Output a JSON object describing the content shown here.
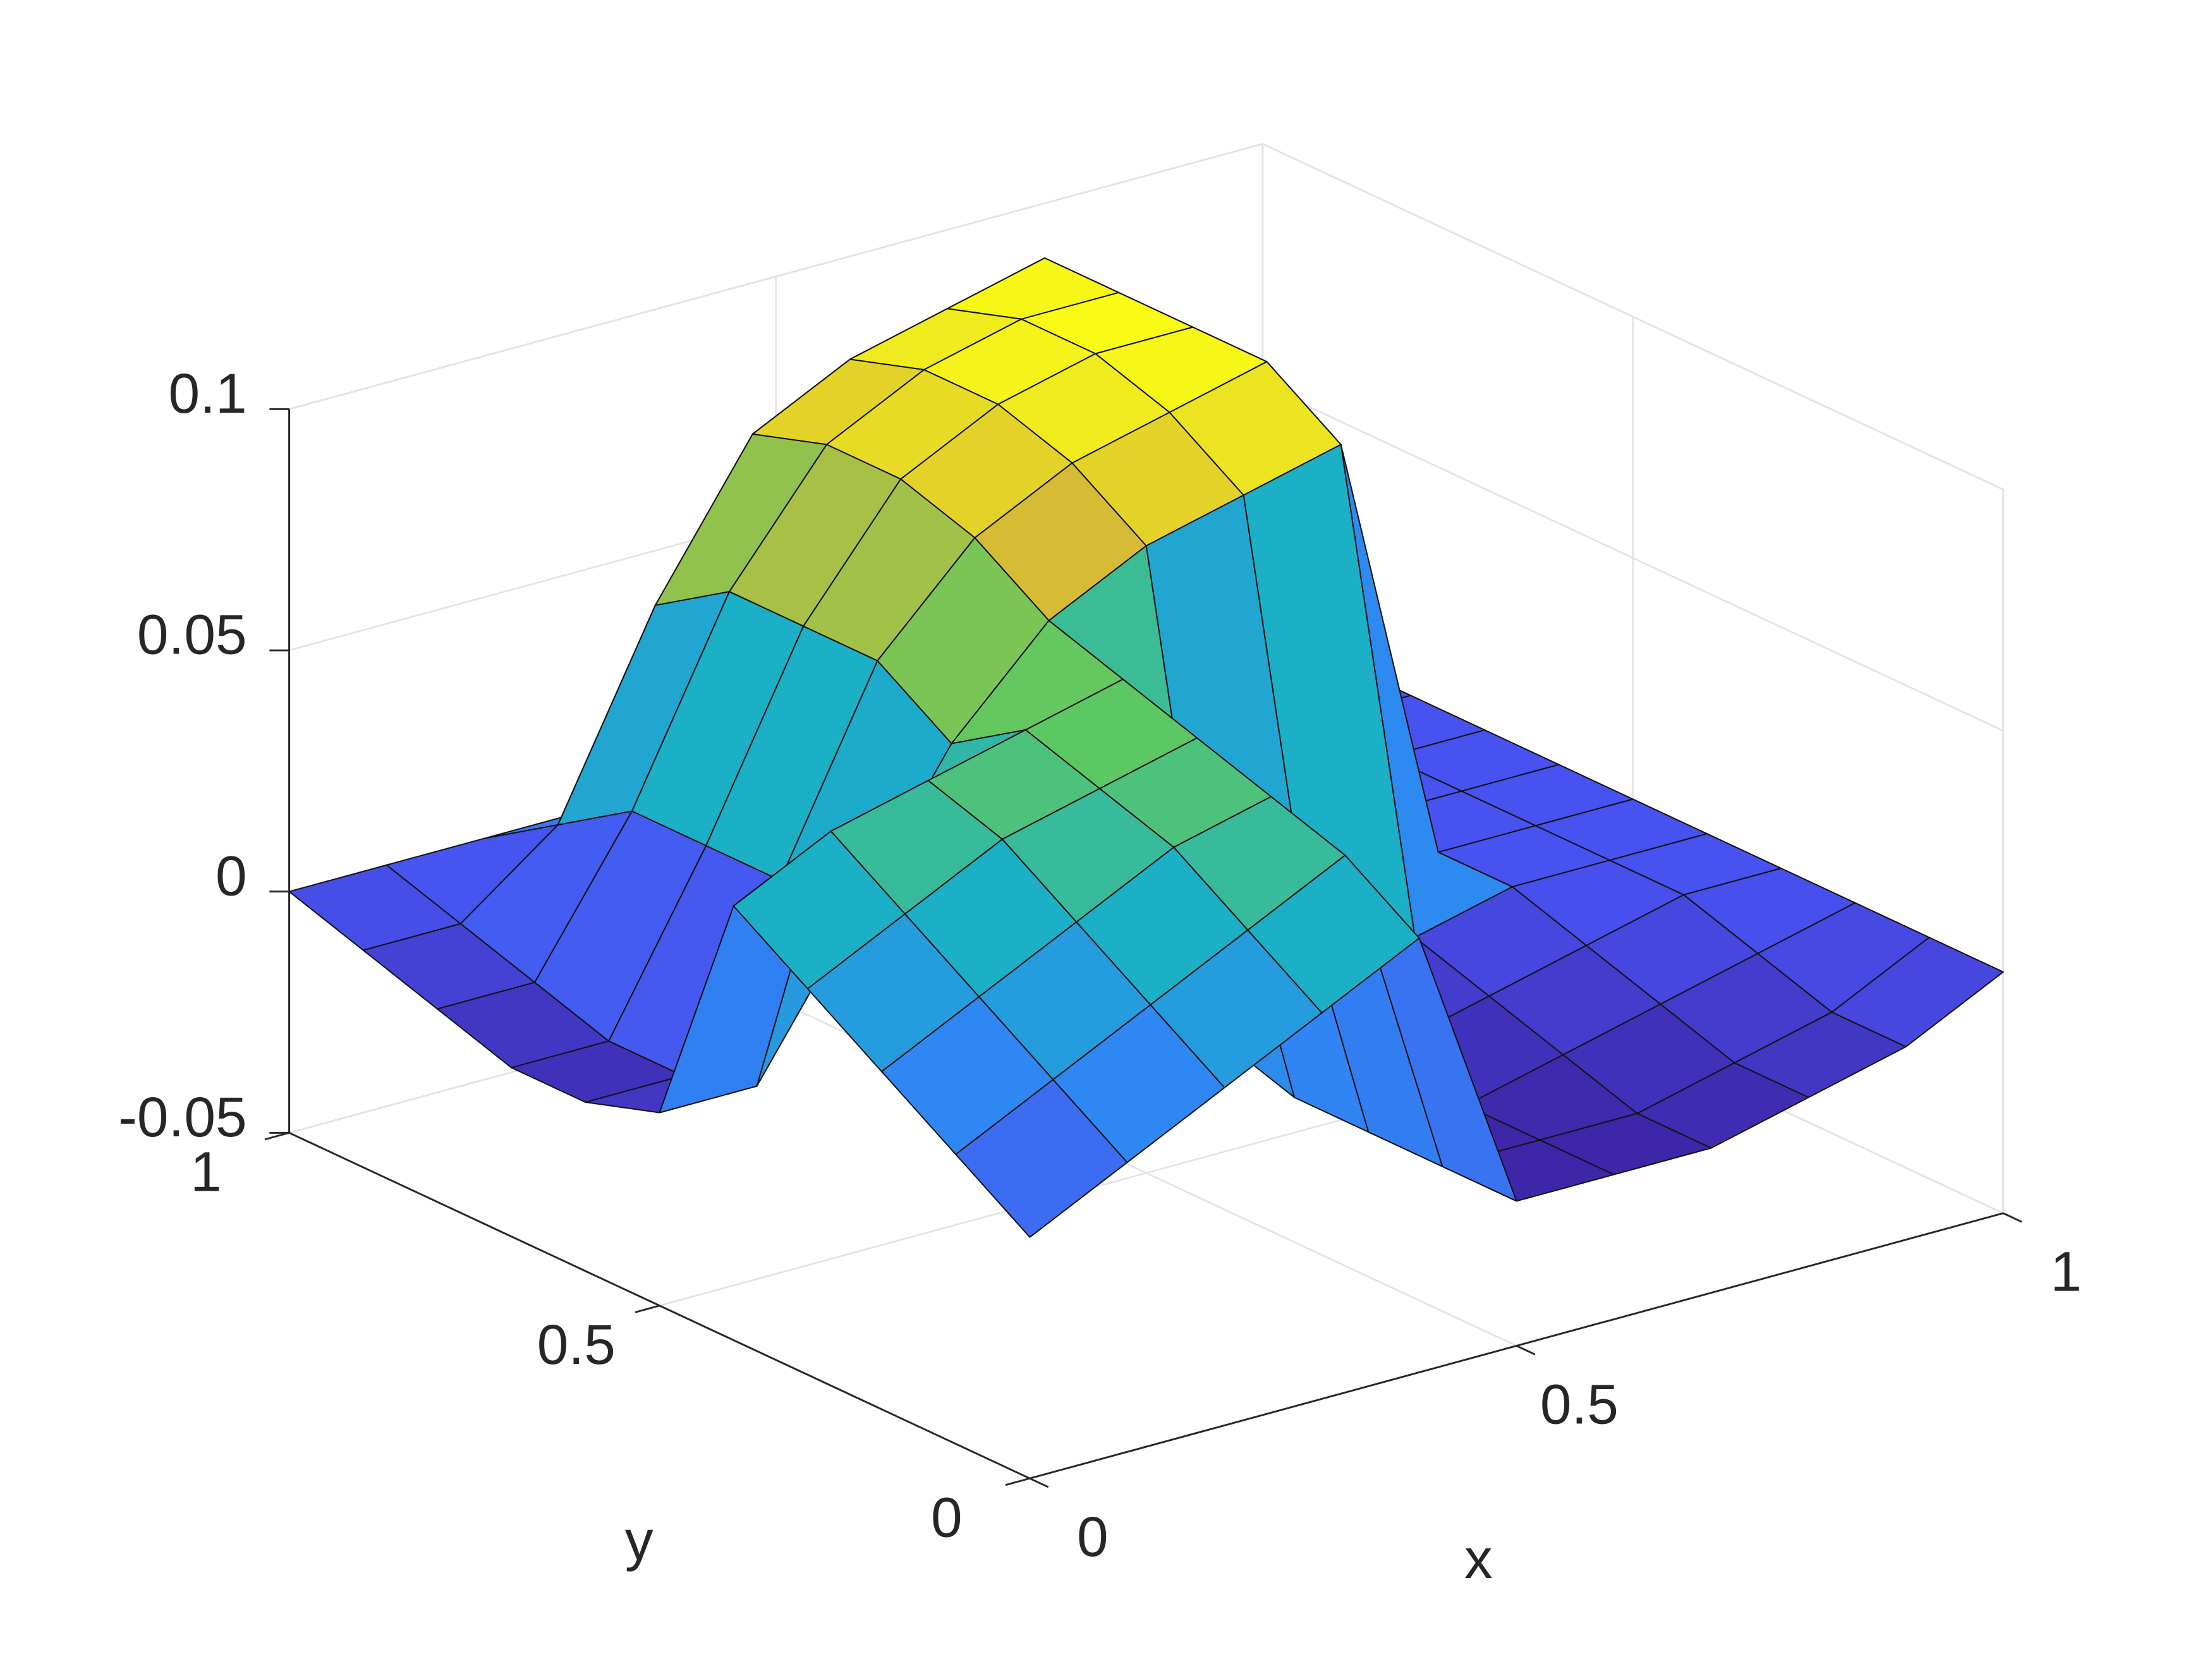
{
  "chart_data": {
    "type": "surface",
    "xlabel": "x",
    "ylabel": "y",
    "x": [
      0,
      0.1,
      0.2,
      0.3,
      0.4,
      0.5,
      0.6,
      0.7,
      0.8,
      0.9,
      1
    ],
    "y": [
      0,
      0.1,
      0.2,
      0.3,
      0.4,
      0.5,
      0.6,
      0.7,
      0.8,
      0.9,
      1
    ],
    "z": [
      [
        0,
        0.01,
        0.02,
        0.03,
        0.04,
        -0.02,
        -0.02,
        -0.02,
        -0.015,
        -0.01,
        0
      ],
      [
        0.01,
        0.02,
        0.03,
        0.04,
        0.05,
        -0.02,
        -0.02,
        -0.02,
        -0.015,
        -0.01,
        0
      ],
      [
        0.02,
        0.03,
        0.04,
        0.05,
        0.055,
        -0.02,
        -0.02,
        -0.015,
        -0.01,
        -0.005,
        0
      ],
      [
        0.03,
        0.04,
        0.05,
        0.055,
        0.06,
        -0.02,
        -0.015,
        -0.01,
        -0.005,
        0,
        0
      ],
      [
        0.04,
        0.05,
        0.055,
        0.06,
        0.065,
        -0.015,
        -0.01,
        -0.005,
        0,
        0,
        0
      ],
      [
        -0.01,
        -0.01,
        0.02,
        0.05,
        0.07,
        0.08,
        0.085,
        0.09,
        0,
        0,
        0
      ],
      [
        -0.015,
        -0.015,
        0.02,
        0.06,
        0.08,
        0.09,
        0.095,
        0.1,
        0,
        0,
        0
      ],
      [
        -0.015,
        -0.015,
        0.02,
        0.06,
        0.085,
        0.095,
        0.1,
        0.1,
        0,
        0,
        0
      ],
      [
        -0.01,
        -0.01,
        0.02,
        0.06,
        0.085,
        0.095,
        0.1,
        0.1,
        0,
        0,
        0
      ],
      [
        -0.005,
        -0.005,
        0.01,
        0.05,
        0.08,
        0.09,
        0.095,
        0.1,
        0,
        0,
        0
      ],
      [
        0,
        0,
        0,
        0,
        0,
        0,
        0,
        0,
        0,
        0,
        0
      ]
    ],
    "xlim": [
      0,
      1
    ],
    "ylim": [
      0,
      1
    ],
    "zlim": [
      -0.05,
      0.1
    ],
    "xticks": [
      0,
      0.5,
      1
    ],
    "yticks": [
      0,
      0.5,
      1
    ],
    "zticks": [
      -0.05,
      0,
      0.05,
      0.1
    ],
    "grid": true,
    "colormap": [
      "#3e26a8",
      "#4852f0",
      "#2e87f3",
      "#1bb0c6",
      "#5cc863",
      "#d6bb34",
      "#f9fb15"
    ],
    "edgecolor": "#111111"
  }
}
